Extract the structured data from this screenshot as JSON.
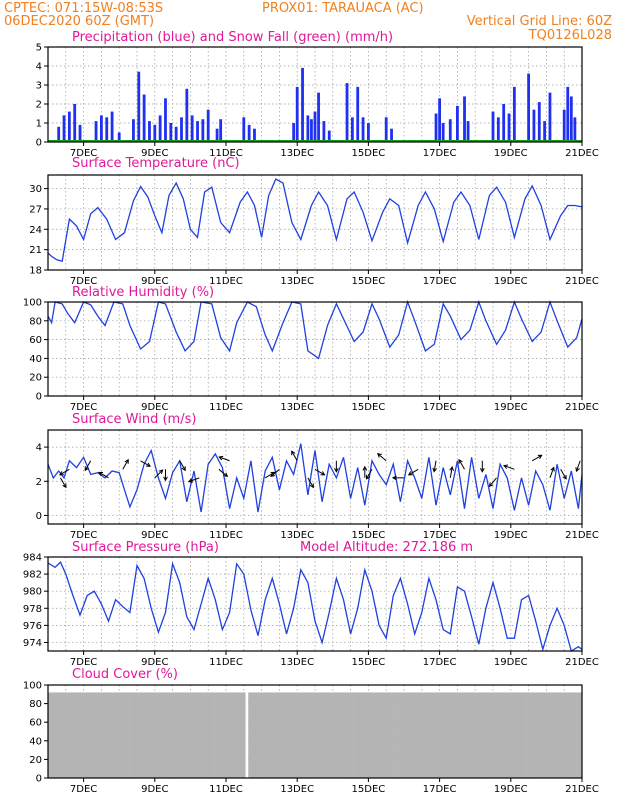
{
  "header": {
    "line1_left": "CPTEC:   071:15W-08:53S",
    "line1_right": "PROX01: TARAUACA (AC)",
    "line2_left": "06DEC2020 60Z (GMT)",
    "line2_right": "Vertical Grid Line: 60Z",
    "line3_right": "TQ0126L028"
  },
  "chart_data": [
    {
      "type": "bar",
      "title": "Precipitation (blue) and Snow Fall (green) (mm/h)",
      "xtick_labels": [
        "7DEC",
        "9DEC",
        "11DEC",
        "13DEC",
        "15DEC",
        "17DEC",
        "19DEC",
        "21DEC"
      ],
      "ylim": [
        0,
        5
      ],
      "yticks": [
        0,
        1,
        2,
        3,
        4,
        5
      ],
      "colors": {
        "precip": "#2030f0",
        "snow": "#10a010"
      },
      "precip_days": [
        6.3,
        6.45,
        6.6,
        6.75,
        6.9,
        7.35,
        7.5,
        7.65,
        7.8,
        8.0,
        8.4,
        8.55,
        8.7,
        8.85,
        9.0,
        9.15,
        9.3,
        9.45,
        9.6,
        9.75,
        9.9,
        10.05,
        10.2,
        10.35,
        10.5,
        10.75,
        10.85,
        11.5,
        11.65,
        11.8,
        12.9,
        13.0,
        13.15,
        13.3,
        13.4,
        13.5,
        13.6,
        13.75,
        13.9,
        14.4,
        14.55,
        14.7,
        14.85,
        15.0,
        15.5,
        15.65,
        16.9,
        17.0,
        17.1,
        17.3,
        17.5,
        17.7,
        17.8,
        18.5,
        18.65,
        18.8,
        18.95,
        19.1,
        19.5,
        19.65,
        19.8,
        19.95,
        20.1,
        20.5,
        20.6,
        20.7,
        20.8
      ],
      "precip_values": [
        0.8,
        1.4,
        1.6,
        2.0,
        0.9,
        1.1,
        1.4,
        1.3,
        1.6,
        0.5,
        1.2,
        3.7,
        2.5,
        1.1,
        0.9,
        1.4,
        2.3,
        1.0,
        0.8,
        1.3,
        2.8,
        1.4,
        1.1,
        1.2,
        1.7,
        0.7,
        1.2,
        1.3,
        0.9,
        0.7,
        1.0,
        2.9,
        3.9,
        1.4,
        1.2,
        1.6,
        2.6,
        1.1,
        0.6,
        3.1,
        1.3,
        2.9,
        1.3,
        1.0,
        1.3,
        0.7,
        1.5,
        2.3,
        1.0,
        1.2,
        1.9,
        2.4,
        1.1,
        1.6,
        1.3,
        2.0,
        1.5,
        2.9,
        3.6,
        1.7,
        2.1,
        1.1,
        2.6,
        1.7,
        2.9,
        2.4,
        1.3
      ]
    },
    {
      "type": "line",
      "title": "Surface Temperature (nC)",
      "xtick_labels": [
        "7DEC",
        "9DEC",
        "11DEC",
        "13DEC",
        "15DEC",
        "17DEC",
        "19DEC",
        "21DEC"
      ],
      "ylim": [
        18,
        32
      ],
      "yticks": [
        18,
        21,
        24,
        27,
        30
      ],
      "color": "#2040e0",
      "x_days": [
        6,
        6.1,
        6.25,
        6.4,
        6.6,
        6.8,
        7.0,
        7.2,
        7.4,
        7.65,
        7.9,
        8.15,
        8.4,
        8.6,
        8.8,
        9.0,
        9.2,
        9.4,
        9.6,
        9.8,
        10.0,
        10.2,
        10.4,
        10.6,
        10.85,
        11.1,
        11.4,
        11.6,
        11.8,
        12.0,
        12.2,
        12.4,
        12.6,
        12.85,
        13.1,
        13.4,
        13.6,
        13.85,
        14.1,
        14.4,
        14.6,
        14.85,
        15.1,
        15.4,
        15.6,
        15.85,
        16.1,
        16.4,
        16.6,
        16.85,
        17.1,
        17.4,
        17.6,
        17.85,
        18.1,
        18.4,
        18.6,
        18.85,
        19.1,
        19.4,
        19.6,
        19.85,
        20.1,
        20.4,
        20.6,
        20.8,
        21.0
      ],
      "y_values": [
        20.5,
        20.0,
        19.5,
        19.3,
        25.5,
        24.5,
        22.5,
        26.3,
        27.2,
        25.5,
        22.5,
        23.5,
        28.2,
        30.3,
        28.8,
        26.0,
        23.5,
        29.0,
        30.8,
        28.5,
        24.0,
        22.8,
        29.5,
        30.2,
        25.0,
        23.5,
        28.0,
        29.5,
        27.5,
        22.8,
        29.0,
        31.4,
        30.8,
        25.0,
        22.5,
        27.5,
        29.5,
        27.5,
        22.5,
        28.5,
        29.5,
        26.5,
        22.3,
        26.5,
        28.5,
        27.5,
        22.0,
        27.5,
        29.5,
        27.0,
        22.2,
        28.0,
        29.5,
        27.5,
        22.5,
        29.0,
        30.2,
        28.0,
        22.8,
        28.5,
        30.4,
        27.5,
        22.5,
        26.0,
        27.5,
        27.5,
        27.3
      ]
    },
    {
      "type": "line",
      "title": "Relative Humidity (%)",
      "xtick_labels": [
        "7DEC",
        "9DEC",
        "11DEC",
        "13DEC",
        "15DEC",
        "17DEC",
        "19DEC",
        "21DEC"
      ],
      "ylim": [
        0,
        100
      ],
      "yticks": [
        0,
        20,
        40,
        60,
        80,
        100
      ],
      "color": "#2040e0",
      "x_days": [
        6,
        6.1,
        6.2,
        6.4,
        6.55,
        6.75,
        7.0,
        7.2,
        7.4,
        7.6,
        7.85,
        8.1,
        8.3,
        8.6,
        8.85,
        9.1,
        9.3,
        9.6,
        9.85,
        10.1,
        10.3,
        10.6,
        10.85,
        11.1,
        11.3,
        11.6,
        11.85,
        12.1,
        12.3,
        12.6,
        12.85,
        13.1,
        13.3,
        13.6,
        13.85,
        14.1,
        14.3,
        14.6,
        14.85,
        15.1,
        15.3,
        15.6,
        15.85,
        16.1,
        16.3,
        16.6,
        16.85,
        17.1,
        17.3,
        17.6,
        17.85,
        18.1,
        18.3,
        18.6,
        18.85,
        19.1,
        19.3,
        19.6,
        19.85,
        20.1,
        20.3,
        20.6,
        20.85,
        21.0
      ],
      "y_values": [
        85,
        78,
        100,
        98,
        88,
        78,
        100,
        97,
        85,
        75,
        100,
        98,
        75,
        50,
        58,
        100,
        98,
        68,
        48,
        58,
        100,
        98,
        62,
        48,
        78,
        100,
        95,
        65,
        48,
        78,
        100,
        98,
        48,
        40,
        75,
        98,
        82,
        58,
        68,
        98,
        82,
        52,
        65,
        100,
        80,
        48,
        55,
        98,
        85,
        60,
        70,
        100,
        80,
        55,
        70,
        100,
        82,
        58,
        68,
        100,
        80,
        52,
        62,
        82
      ]
    },
    {
      "type": "line",
      "title": "Surface Wind (m/s)",
      "xtick_labels": [
        "7DEC",
        "9DEC",
        "11DEC",
        "13DEC",
        "15DEC",
        "17DEC",
        "19DEC",
        "21DEC"
      ],
      "ylim": [
        -0.5,
        5
      ],
      "yticks": [
        0,
        2,
        4
      ],
      "color": "#2040e0",
      "x_days": [
        6,
        6.15,
        6.3,
        6.45,
        6.6,
        6.8,
        7.0,
        7.2,
        7.4,
        7.6,
        7.8,
        8.0,
        8.15,
        8.3,
        8.5,
        8.7,
        8.9,
        9.1,
        9.3,
        9.5,
        9.7,
        9.9,
        10.1,
        10.3,
        10.5,
        10.7,
        10.9,
        11.1,
        11.3,
        11.5,
        11.7,
        11.9,
        12.1,
        12.3,
        12.5,
        12.7,
        12.9,
        13.1,
        13.3,
        13.5,
        13.7,
        13.9,
        14.1,
        14.3,
        14.5,
        14.7,
        14.9,
        15.1,
        15.3,
        15.5,
        15.7,
        15.9,
        16.1,
        16.3,
        16.5,
        16.7,
        16.9,
        17.1,
        17.3,
        17.5,
        17.7,
        17.9,
        18.1,
        18.3,
        18.5,
        18.7,
        18.9,
        19.1,
        19.3,
        19.5,
        19.7,
        19.9,
        20.1,
        20.3,
        20.5,
        20.7,
        20.9,
        21.0
      ],
      "y_values": [
        3.0,
        2.2,
        2.6,
        2.2,
        3.2,
        2.8,
        3.4,
        2.4,
        2.5,
        2.2,
        2.6,
        2.5,
        1.5,
        0.5,
        1.5,
        3.0,
        3.8,
        2.2,
        1.0,
        2.5,
        3.2,
        0.8,
        2.6,
        0.2,
        3.0,
        3.6,
        2.8,
        0.4,
        2.2,
        1.0,
        3.2,
        0.2,
        2.6,
        3.4,
        1.5,
        3.2,
        2.4,
        4.2,
        1.2,
        3.8,
        0.8,
        3.0,
        2.2,
        3.4,
        1.0,
        2.8,
        0.6,
        3.2,
        2.4,
        1.8,
        3.0,
        0.8,
        3.2,
        2.2,
        1.0,
        3.4,
        0.6,
        2.8,
        1.2,
        3.2,
        0.4,
        3.4,
        1.0,
        2.4,
        0.4,
        3.0,
        2.2,
        0.3,
        2.2,
        0.6,
        2.6,
        1.8,
        0.3,
        3.0,
        1.0,
        2.6,
        0.4,
        2.4
      ],
      "arrow_days": [
        6.35,
        6.6,
        7.2,
        7.7,
        8.1,
        8.6,
        9.0,
        9.3,
        9.7,
        10.25,
        10.8,
        11.1,
        12.1,
        12.5,
        13.0,
        13.3,
        13.5,
        14.1,
        14.9,
        15.1,
        15.5,
        16.0,
        16.4,
        16.9,
        17.3,
        17.7,
        18.2,
        18.6,
        19.1,
        19.6,
        20.1,
        20.4,
        20.95
      ],
      "arrow_angles": [
        300,
        210,
        240,
        150,
        60,
        330,
        45,
        270,
        300,
        200,
        320,
        160,
        30,
        220,
        120,
        300,
        330,
        270,
        90,
        240,
        140,
        180,
        210,
        260,
        80,
        120,
        270,
        230,
        160,
        30,
        70,
        300,
        250
      ]
    },
    {
      "type": "line",
      "title": "Surface Pressure (hPa)",
      "annotation": "Model Altitude: 272.186 m",
      "xtick_labels": [
        "7DEC",
        "9DEC",
        "11DEC",
        "13DEC",
        "15DEC",
        "17DEC",
        "19DEC",
        "21DEC"
      ],
      "ylim": [
        973,
        984
      ],
      "yticks": [
        974,
        976,
        978,
        980,
        982,
        984
      ],
      "color": "#2040e0",
      "x_days": [
        6,
        6.2,
        6.35,
        6.5,
        6.7,
        6.9,
        7.1,
        7.3,
        7.5,
        7.7,
        7.9,
        8.1,
        8.3,
        8.5,
        8.7,
        8.9,
        9.1,
        9.3,
        9.5,
        9.7,
        9.9,
        10.1,
        10.3,
        10.5,
        10.7,
        10.9,
        11.1,
        11.3,
        11.5,
        11.7,
        11.9,
        12.1,
        12.3,
        12.5,
        12.7,
        12.9,
        13.1,
        13.3,
        13.5,
        13.7,
        13.9,
        14.1,
        14.3,
        14.5,
        14.7,
        14.9,
        15.1,
        15.3,
        15.5,
        15.7,
        15.9,
        16.1,
        16.3,
        16.5,
        16.7,
        16.9,
        17.1,
        17.3,
        17.5,
        17.7,
        17.9,
        18.1,
        18.3,
        18.5,
        18.7,
        18.9,
        19.1,
        19.3,
        19.5,
        19.7,
        19.9,
        20.1,
        20.3,
        20.5,
        20.7,
        20.9,
        21.0
      ],
      "y_values": [
        983.3,
        982.8,
        983.4,
        982.0,
        979.5,
        977.2,
        979.5,
        980.0,
        978.5,
        976.5,
        979.0,
        978.2,
        977.5,
        983.0,
        981.5,
        978.0,
        975.2,
        977.5,
        983.2,
        981.0,
        977.0,
        975.5,
        978.5,
        981.5,
        979.0,
        975.5,
        977.5,
        983.2,
        982.0,
        977.8,
        974.8,
        979.0,
        981.5,
        978.5,
        975.0,
        978.0,
        982.5,
        981.0,
        976.5,
        974.0,
        977.5,
        981.5,
        979.0,
        975.0,
        978.0,
        982.5,
        980.0,
        976.0,
        974.5,
        979.5,
        981.5,
        978.5,
        975.0,
        977.5,
        981.5,
        979.0,
        975.5,
        975.0,
        980.5,
        980.0,
        977.0,
        973.8,
        978.0,
        981.0,
        978.0,
        974.5,
        974.5,
        979.0,
        979.5,
        976.5,
        973.2,
        976.0,
        978.0,
        976.0,
        973.0,
        973.5,
        973.2
      ]
    },
    {
      "type": "bar",
      "title": "Cloud Cover (%)",
      "xtick_labels": [
        "7DEC",
        "9DEC",
        "11DEC",
        "13DEC",
        "15DEC",
        "17DEC",
        "19DEC",
        "21DEC"
      ],
      "ylim": [
        0,
        100
      ],
      "yticks": [
        0,
        20,
        40,
        60,
        80,
        100
      ],
      "color": "#b4b4b4",
      "baseline_value": 92,
      "gap_day": 11.55
    }
  ]
}
